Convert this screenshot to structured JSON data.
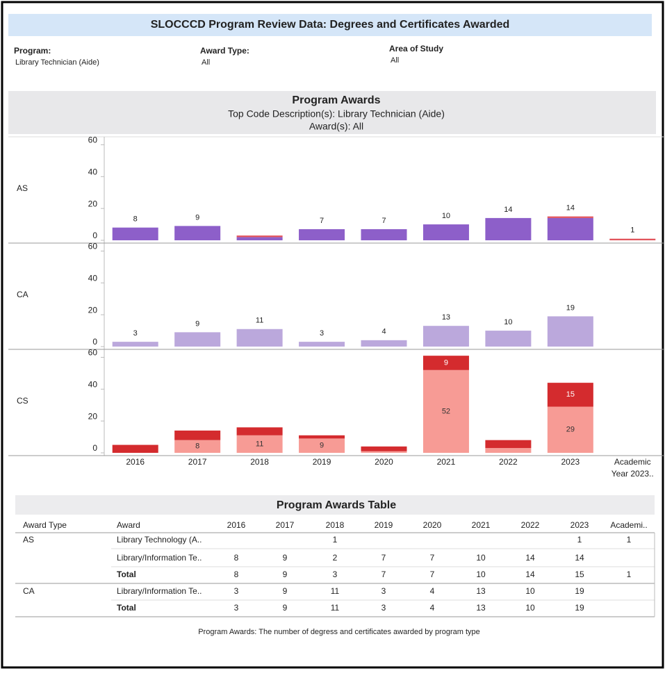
{
  "header": {
    "title": "SLOCCCD Program Review Data: Degrees and Certificates Awarded"
  },
  "filters": [
    {
      "label": "Program:",
      "value": "Library Technician (Aide)"
    },
    {
      "label": "Award Type:",
      "value": "All"
    },
    {
      "label": "Area of Study",
      "value": "All"
    }
  ],
  "section": {
    "title": "Program Awards",
    "subtitle": "Top Code Description(s): Library Technician (Aide)",
    "subtitle2": "Award(s): All"
  },
  "chart_data": [
    {
      "type": "bar",
      "stacked": true,
      "label": "AS",
      "ylim": [
        0,
        65
      ],
      "yticks": [
        0,
        20,
        40,
        60
      ],
      "label_position": "above",
      "series": [
        {
          "color": "#8d5fc9",
          "label_color": "#222222",
          "values": [
            8,
            9,
            2,
            7,
            7,
            10,
            14,
            14,
            null
          ],
          "value_labels": [
            "8",
            "9",
            null,
            "7",
            "7",
            "10",
            "14",
            "14",
            null
          ]
        },
        {
          "color": "#e2545c",
          "label_color": "#222222",
          "values": [
            null,
            null,
            1,
            null,
            null,
            null,
            null,
            1,
            1
          ],
          "value_labels": [
            null,
            null,
            null,
            null,
            null,
            null,
            null,
            null,
            "1"
          ]
        }
      ]
    },
    {
      "type": "bar",
      "stacked": true,
      "label": "CA",
      "ylim": [
        0,
        65
      ],
      "yticks": [
        0,
        20,
        40,
        60
      ],
      "label_position": "above",
      "series": [
        {
          "color": "#bba8dc",
          "label_color": "#222222",
          "values": [
            3,
            9,
            11,
            3,
            4,
            13,
            10,
            19,
            null
          ]
        }
      ]
    },
    {
      "type": "bar",
      "stacked": true,
      "label": "CS",
      "ylim": [
        0,
        65
      ],
      "yticks": [
        0,
        20,
        40,
        60
      ],
      "label_position": "inside",
      "categories": [
        "2016",
        "2017",
        "2018",
        "2019",
        "2020",
        "2021",
        "2022",
        "2023",
        "Academic Year 2023.."
      ],
      "series": [
        {
          "color": "#f79b95",
          "label_color": "#333333",
          "values": [
            null,
            8,
            11,
            9,
            1,
            52,
            3,
            29,
            null
          ],
          "value_labels": [
            null,
            "8",
            "11",
            "9",
            null,
            "52",
            null,
            "29",
            null
          ]
        },
        {
          "color": "#d42b2e",
          "label_color": "#ffffff",
          "values": [
            5,
            6,
            5,
            2,
            3,
            9,
            5,
            15,
            null
          ],
          "value_labels": [
            null,
            null,
            null,
            null,
            null,
            "9",
            null,
            "15",
            null
          ]
        }
      ]
    }
  ],
  "table": {
    "title": "Program Awards Table",
    "columns": [
      "Award Type",
      "Award",
      "2016",
      "2017",
      "2018",
      "2019",
      "2020",
      "2021",
      "2022",
      "2023",
      "Academi.."
    ],
    "rows": [
      [
        "AS",
        "Library Technology (A..",
        null,
        null,
        1,
        null,
        null,
        null,
        null,
        1,
        1
      ],
      [
        null,
        "Library/Information Te..",
        8,
        9,
        2,
        7,
        7,
        10,
        14,
        14,
        null
      ],
      [
        null,
        "Total",
        8,
        9,
        3,
        7,
        7,
        10,
        14,
        15,
        1
      ],
      [
        "CA",
        "Library/Information Te..",
        3,
        9,
        11,
        3,
        4,
        13,
        10,
        19,
        null
      ],
      [
        null,
        "Total",
        3,
        9,
        11,
        3,
        4,
        13,
        10,
        19,
        null
      ]
    ]
  },
  "footer": "Program Awards: The number of degress and certificates awarded by program type"
}
